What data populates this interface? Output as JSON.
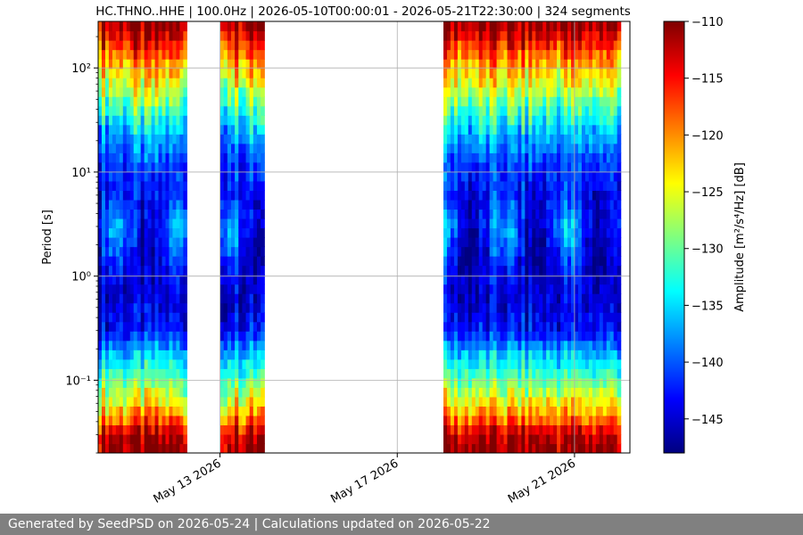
{
  "footer": {
    "text": "Generated by SeedPSD on 2026-05-24 | Calculations updated on 2026-05-22"
  },
  "chart_data": {
    "type": "heatmap",
    "title": "HC.THNO..HHE | 100.0Hz | 2026-05-10T00:00:01 - 2026-05-21T22:30:00 | 324 segments",
    "xlabel": "",
    "ylabel": "Period [s]",
    "colorbar_label": "Amplitude [m²/s⁴/Hz] [dB]",
    "colormap": "jet",
    "x_axis": {
      "type": "date",
      "range": [
        "2026-05-10T06:00:00",
        "2026-05-22T06:00:00"
      ],
      "ticks": [
        {
          "value": "2026-05-13",
          "label": "May 13 2026"
        },
        {
          "value": "2026-05-17",
          "label": "May 17 2026"
        },
        {
          "value": "2026-05-21",
          "label": "May 21 2026"
        }
      ],
      "grid": true
    },
    "y_axis": {
      "type": "log",
      "inverted": true,
      "range": [
        0.02,
        280
      ],
      "ticks": [
        {
          "value": 0.1,
          "label": "10⁻¹"
        },
        {
          "value": 1,
          "label": "10⁰"
        },
        {
          "value": 10,
          "label": "10¹"
        },
        {
          "value": 100,
          "label": "10²"
        }
      ],
      "grid": true
    },
    "color_scale": {
      "range": [
        -148,
        -110
      ],
      "ticks": [
        -110,
        -115,
        -120,
        -125,
        -130,
        -135,
        -140,
        -145
      ],
      "tick_labels": [
        "−110",
        "−115",
        "−120",
        "−125",
        "−130",
        "−135",
        "−140",
        "−145"
      ]
    },
    "data_intervals": [
      {
        "start": "2026-05-10T06:00:00",
        "end": "2026-05-12T06:00:00"
      },
      {
        "start": "2026-05-13T00:00:00",
        "end": "2026-05-14T00:00:00"
      },
      {
        "start": "2026-05-18T01:00:00",
        "end": "2026-05-22T01:00:00"
      }
    ],
    "period_profile": [
      {
        "period": 0.02,
        "amplitude": -110
      },
      {
        "period": 0.03,
        "amplitude": -112
      },
      {
        "period": 0.04,
        "amplitude": -118
      },
      {
        "period": 0.06,
        "amplitude": -124
      },
      {
        "period": 0.1,
        "amplitude": -130
      },
      {
        "period": 0.18,
        "amplitude": -136
      },
      {
        "period": 0.3,
        "amplitude": -143
      },
      {
        "period": 0.6,
        "amplitude": -145
      },
      {
        "period": 1.5,
        "amplitude": -144
      },
      {
        "period": 3,
        "amplitude": -141
      },
      {
        "period": 6,
        "amplitude": -143
      },
      {
        "period": 12,
        "amplitude": -141
      },
      {
        "period": 25,
        "amplitude": -136
      },
      {
        "period": 50,
        "amplitude": -129
      },
      {
        "period": 100,
        "amplitude": -122
      },
      {
        "period": 180,
        "amplitude": -115
      },
      {
        "period": 280,
        "amplitude": -110
      }
    ]
  }
}
